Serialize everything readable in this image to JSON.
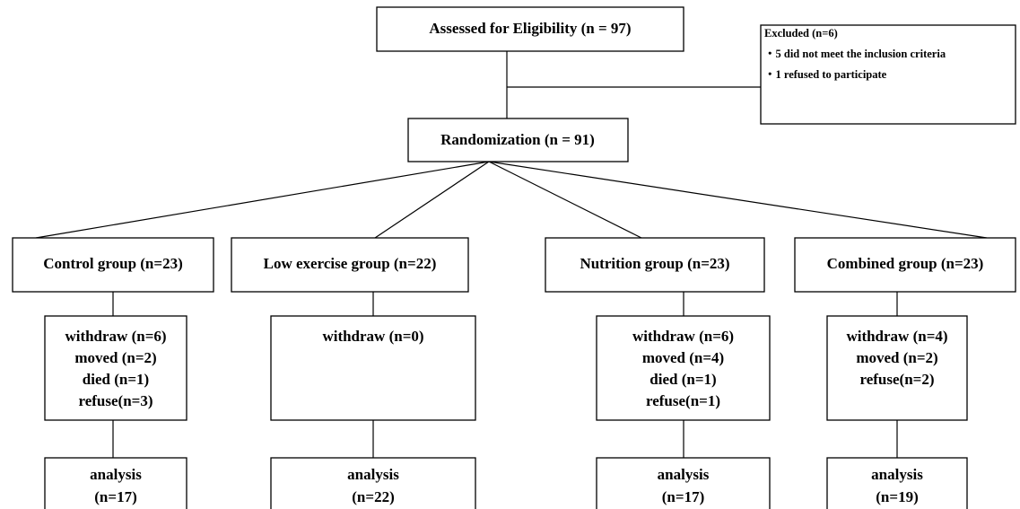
{
  "assessed": "Assessed for Eligibility (n = 97)",
  "excluded": {
    "title": "Excluded (n=6)",
    "items": [
      "・5 did not meet the inclusion criteria",
      "・1 refused to participate"
    ]
  },
  "randomization": "Randomization   (n = 91)",
  "groups": [
    {
      "label": "Control group (n=23)",
      "withdraw": [
        "withdraw (n=6)",
        "moved (n=2)",
        "died (n=1)",
        "refuse(n=3)"
      ],
      "analysis": [
        "analysis",
        "(n=17)"
      ]
    },
    {
      "label": "Low exercise group (n=22)",
      "withdraw": [
        "withdraw (n=0)"
      ],
      "analysis": [
        "analysis",
        "(n=22)"
      ]
    },
    {
      "label": "Nutrition group (n=23)",
      "withdraw": [
        "withdraw (n=6)",
        "moved (n=4)",
        "died (n=1)",
        "refuse(n=1)"
      ],
      "analysis": [
        "analysis",
        "(n=17)"
      ]
    },
    {
      "label": "Combined group (n=23)",
      "withdraw": [
        "withdraw (n=4)",
        "moved (n=2)",
        "refuse(n=2)"
      ],
      "analysis": [
        "analysis",
        "(n=19)"
      ]
    }
  ]
}
